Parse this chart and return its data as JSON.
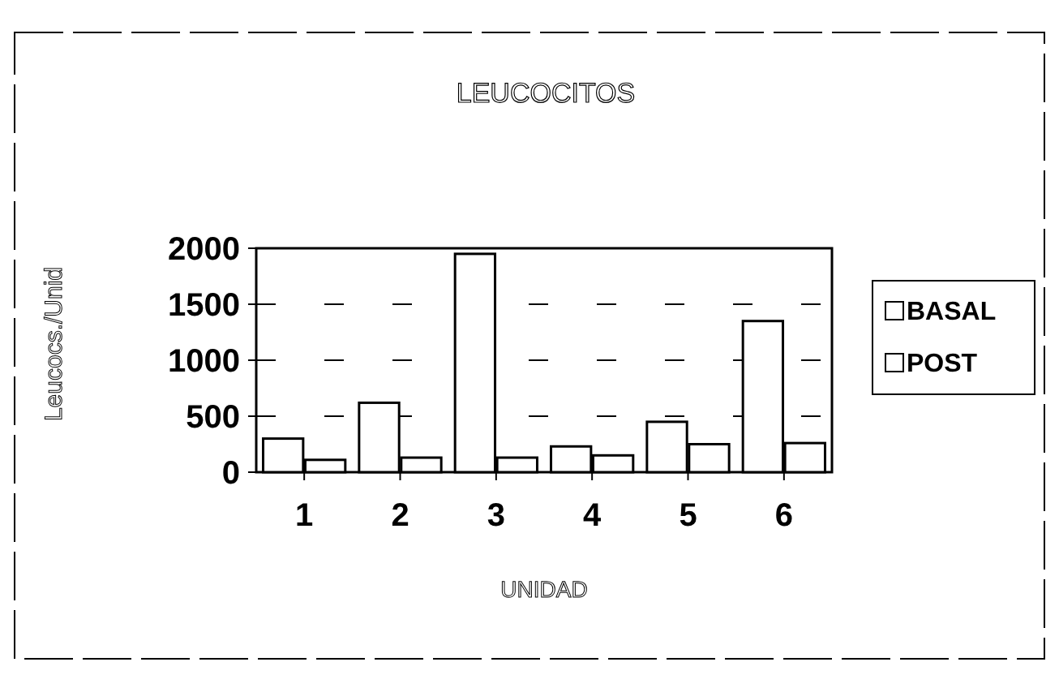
{
  "chart_data": {
    "type": "bar",
    "title": "LEUCOCITOS",
    "xlabel": "UNIDAD",
    "ylabel": "Leucocs./Unid",
    "categories": [
      "1",
      "2",
      "3",
      "4",
      "5",
      "6"
    ],
    "series": [
      {
        "name": "BASAL",
        "color": "#ffffff",
        "values": [
          300,
          620,
          1950,
          230,
          450,
          1350
        ]
      },
      {
        "name": "POST",
        "color": "#ffffff",
        "values": [
          110,
          130,
          130,
          150,
          250,
          260
        ]
      }
    ],
    "ylim": [
      0,
      2000
    ],
    "yticks": [
      0,
      500,
      1000,
      1500,
      2000
    ],
    "grid": "y",
    "legend": "right"
  }
}
